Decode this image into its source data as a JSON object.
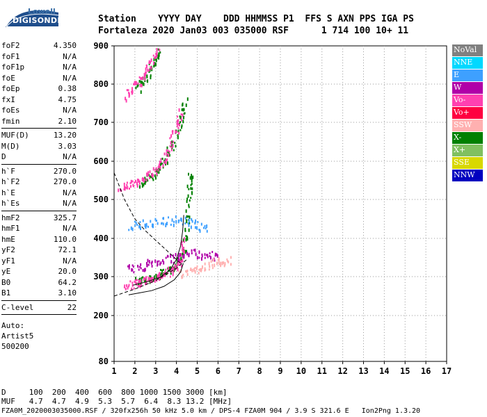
{
  "logo": {
    "top": "Lowell",
    "bottom": "DIGISONDE"
  },
  "header": {
    "line1": "Station    YYYY DAY    DDD HHMMSS P1  FFS S AXN PPS IGA PS",
    "line2": "Fortaleza 2020 Jan03 003 035000 RSF      1 714 100 10+ 11"
  },
  "params": [
    {
      "name": "foF2",
      "value": "4.350"
    },
    {
      "name": "foF1",
      "value": "N/A"
    },
    {
      "name": "foF1p",
      "value": "N/A"
    },
    {
      "name": "foE",
      "value": "N/A"
    },
    {
      "name": "foEp",
      "value": "0.38"
    },
    {
      "name": "fxI",
      "value": "4.75"
    },
    {
      "name": "foEs",
      "value": "N/A"
    },
    {
      "name": "fmin",
      "value": "2.10"
    },
    {
      "sep": true
    },
    {
      "name": "MUF(D)",
      "value": "13.20"
    },
    {
      "name": "M(D)",
      "value": "3.03"
    },
    {
      "name": "D",
      "value": "N/A"
    },
    {
      "sep": true
    },
    {
      "name": "h`F",
      "value": "270.0"
    },
    {
      "name": "h`F2",
      "value": "270.0"
    },
    {
      "name": "h`E",
      "value": "N/A"
    },
    {
      "name": "h`Es",
      "value": "N/A"
    },
    {
      "sep": true
    },
    {
      "name": "hmF2",
      "value": "325.7"
    },
    {
      "name": "hmF1",
      "value": "N/A"
    },
    {
      "name": "hmE",
      "value": "110.0"
    },
    {
      "name": "yF2",
      "value": "72.1"
    },
    {
      "name": "yF1",
      "value": "N/A"
    },
    {
      "name": "yE",
      "value": "20.0"
    },
    {
      "name": "B0",
      "value": "64.2"
    },
    {
      "name": "B1",
      "value": "3.10"
    },
    {
      "sep": true
    },
    {
      "name": "C-level",
      "value": "22"
    },
    {
      "sep": true
    }
  ],
  "auto": [
    "Auto:",
    "Artist5",
    "500200"
  ],
  "legend": [
    {
      "label": "NoVal",
      "color": "#808080"
    },
    {
      "label": "NNE",
      "color": "#00d8ff"
    },
    {
      "label": "E",
      "color": "#3ea0ff"
    },
    {
      "label": "W",
      "color": "#b000a8"
    },
    {
      "label": "Vo-",
      "color": "#ff40b0"
    },
    {
      "label": "Vo+",
      "color": "#ff0040"
    },
    {
      "label": "SSW",
      "color": "#ffb0b0"
    },
    {
      "label": "X-",
      "color": "#008000"
    },
    {
      "label": "X+",
      "color": "#80c060"
    },
    {
      "label": "SSE",
      "color": "#d8d800"
    },
    {
      "label": "NNW",
      "color": "#0000c0"
    }
  ],
  "bottom": {
    "d_line": "D     100  200  400  600  800 1000 1500 3000 [km]",
    "muf_line": "MUF   4.7  4.7  4.9  5.3  5.7  6.4  8.3 13.2 [MHz]"
  },
  "footer": "FZA0M_2020003035000.RSF / 320fx256h 50 kHz 5.0 km / DPS-4 FZA0M 904 / 3.9 S 321.6 E   Ion2Png 1.3.20",
  "chart_data": {
    "type": "scatter",
    "title": "",
    "xlabel": "",
    "ylabel": "",
    "xlim": [
      1,
      17
    ],
    "ylim": [
      80,
      900
    ],
    "x_ticks": [
      1,
      2,
      3,
      4,
      5,
      6,
      7,
      8,
      9,
      10,
      11,
      12,
      13,
      14,
      15,
      16,
      17
    ],
    "y_ticks": [
      80,
      200,
      300,
      400,
      500,
      600,
      700,
      800,
      900
    ],
    "grid": "dotted",
    "legend_position": "right",
    "series": [
      {
        "name": "X-",
        "color": "#008000",
        "trace": [
          [
            2.0,
            290
          ],
          [
            2.6,
            298
          ],
          [
            3.1,
            305
          ],
          [
            3.6,
            318
          ],
          [
            4.0,
            335
          ],
          [
            4.3,
            370
          ],
          [
            4.5,
            440
          ],
          [
            4.6,
            520
          ],
          [
            4.65,
            575
          ]
        ]
      },
      {
        "name": "X-",
        "color": "#008000",
        "trace": [
          [
            2.3,
            545
          ],
          [
            2.7,
            560
          ],
          [
            3.1,
            580
          ],
          [
            3.5,
            610
          ],
          [
            3.9,
            660
          ],
          [
            4.2,
            710
          ],
          [
            4.4,
            760
          ]
        ]
      },
      {
        "name": "X-",
        "color": "#008000",
        "trace": [
          [
            2.1,
            790
          ],
          [
            2.5,
            820
          ],
          [
            2.9,
            860
          ],
          [
            3.2,
            890
          ]
        ]
      },
      {
        "name": "Vo-",
        "color": "#ff40b0",
        "trace": [
          [
            1.5,
            275
          ],
          [
            2.0,
            285
          ],
          [
            2.5,
            292
          ],
          [
            3.0,
            300
          ],
          [
            3.5,
            310
          ],
          [
            3.9,
            325
          ],
          [
            4.2,
            345
          ],
          [
            4.35,
            400
          ]
        ]
      },
      {
        "name": "Vo-",
        "color": "#ff40b0",
        "trace": [
          [
            1.2,
            530
          ],
          [
            1.7,
            540
          ],
          [
            2.2,
            548
          ],
          [
            2.7,
            565
          ],
          [
            3.2,
            595
          ],
          [
            3.6,
            630
          ],
          [
            4.0,
            690
          ],
          [
            4.2,
            730
          ]
        ]
      },
      {
        "name": "Vo-",
        "color": "#ff40b0",
        "trace": [
          [
            1.5,
            770
          ],
          [
            2.0,
            795
          ],
          [
            2.4,
            825
          ],
          [
            2.8,
            860
          ],
          [
            3.1,
            890
          ]
        ]
      },
      {
        "name": "E",
        "color": "#3ea0ff",
        "trace": [
          [
            1.8,
            435
          ],
          [
            2.5,
            440
          ],
          [
            3.2,
            445
          ],
          [
            4.0,
            450
          ],
          [
            4.8,
            440
          ],
          [
            5.5,
            430
          ]
        ]
      },
      {
        "name": "W",
        "color": "#b000a8",
        "trace": [
          [
            1.6,
            320
          ],
          [
            2.3,
            330
          ],
          [
            3.0,
            340
          ],
          [
            3.8,
            350
          ],
          [
            4.6,
            365
          ],
          [
            5.4,
            360
          ],
          [
            6.0,
            350
          ]
        ]
      },
      {
        "name": "SSW",
        "color": "#ffb0b0",
        "trace": [
          [
            4.2,
            310
          ],
          [
            4.8,
            320
          ],
          [
            5.4,
            330
          ],
          [
            6.0,
            340
          ],
          [
            6.6,
            345
          ]
        ]
      }
    ],
    "profile_curves": [
      {
        "style": "solid",
        "points": [
          [
            1.7,
            253
          ],
          [
            2.2,
            258
          ],
          [
            2.8,
            264
          ],
          [
            3.4,
            275
          ],
          [
            3.9,
            292
          ],
          [
            4.2,
            312
          ],
          [
            4.33,
            335
          ]
        ]
      },
      {
        "style": "solid",
        "points": [
          [
            1.9,
            278
          ],
          [
            2.6,
            287
          ],
          [
            3.2,
            298
          ],
          [
            3.7,
            318
          ],
          [
            4.0,
            345
          ],
          [
            4.2,
            380
          ],
          [
            4.3,
            420
          ],
          [
            4.35,
            460
          ]
        ]
      },
      {
        "style": "dashed",
        "points": [
          [
            1.0,
            250
          ],
          [
            2.0,
            268
          ],
          [
            3.0,
            290
          ],
          [
            4.0,
            322
          ],
          [
            4.5,
            345
          ]
        ]
      },
      {
        "style": "dashed",
        "points": [
          [
            1.0,
            570
          ],
          [
            1.5,
            500
          ],
          [
            2.0,
            450
          ],
          [
            2.5,
            420
          ],
          [
            3.0,
            395
          ],
          [
            3.5,
            370
          ],
          [
            4.2,
            335
          ]
        ]
      }
    ]
  }
}
